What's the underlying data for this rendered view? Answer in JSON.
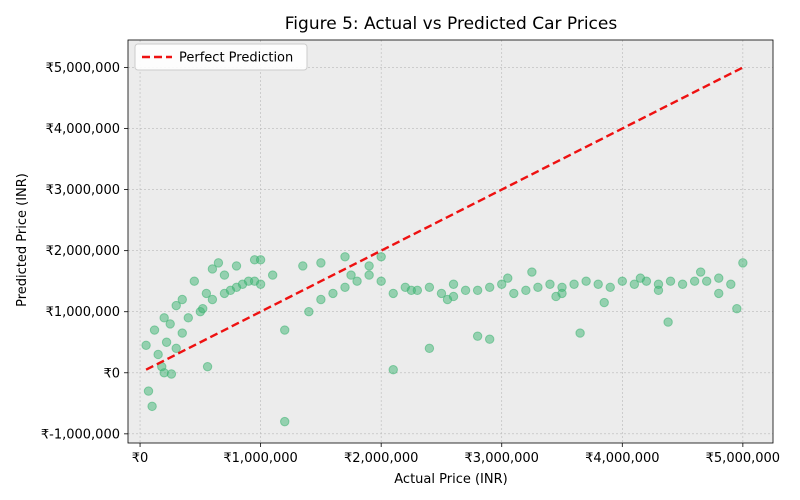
{
  "chart_data": {
    "type": "scatter",
    "title": "Figure 5: Actual vs Predicted Car Prices",
    "xlabel": "Actual Price (INR)",
    "ylabel": "Predicted Price (INR)",
    "xlim": [
      -100000,
      5250000
    ],
    "ylim": [
      -1150000,
      5450000
    ],
    "xticks": [
      0,
      1000000,
      2000000,
      3000000,
      4000000,
      5000000
    ],
    "xtick_labels": [
      "₹0",
      "₹1,000,000",
      "₹2,000,000",
      "₹3,000,000",
      "₹4,000,000",
      "₹5,000,000"
    ],
    "yticks": [
      -1000000,
      0,
      1000000,
      2000000,
      3000000,
      4000000,
      5000000
    ],
    "ytick_labels": [
      "₹-1,000,000",
      "₹0",
      "₹1,000,000",
      "₹2,000,000",
      "₹3,000,000",
      "₹4,000,000",
      "₹5,000,000"
    ],
    "grid": true,
    "legend_position": "top-left",
    "colors": {
      "points": "#3cb371",
      "reference": "#ee1111",
      "plot_bg": "#ececec",
      "grid": "#b8b8b8"
    },
    "series": [
      {
        "kind": "points",
        "x": [
          50000,
          70000,
          100000,
          120000,
          150000,
          180000,
          200000,
          220000,
          260000,
          300000,
          350000,
          400000,
          500000,
          520000,
          560000,
          600000,
          700000,
          750000,
          800000,
          850000,
          900000,
          950000,
          1000000,
          1100000,
          1200000,
          1400000,
          1500000,
          1600000,
          1700000,
          1800000,
          1900000,
          2000000,
          2100000,
          2200000,
          2300000,
          2400000,
          2500000,
          2600000,
          2700000,
          2800000,
          2900000,
          3000000,
          3100000,
          3200000,
          3300000,
          3400000,
          3500000,
          3600000,
          3700000,
          3800000,
          3900000,
          4000000,
          4100000,
          4200000,
          4300000,
          4400000,
          4500000,
          4600000,
          4700000,
          4800000,
          4900000,
          5000000,
          1200000,
          1500000,
          2100000,
          2400000,
          3650000,
          4380000,
          2900000,
          2800000,
          1700000,
          3250000,
          200000,
          300000,
          450000,
          600000,
          650000,
          950000,
          1350000,
          1750000,
          2250000,
          2550000,
          3050000,
          3450000,
          3850000,
          4150000,
          4650000,
          4950000,
          1900000,
          2600000,
          3500000,
          4300000,
          4800000,
          2000000,
          1000000,
          800000,
          700000,
          250000,
          350000,
          550000
        ],
        "y": [
          450000,
          -300000,
          -550000,
          700000,
          300000,
          100000,
          0,
          500000,
          -20000,
          400000,
          650000,
          900000,
          1000000,
          1050000,
          100000,
          1200000,
          1300000,
          1350000,
          1400000,
          1450000,
          1500000,
          1500000,
          1450000,
          1600000,
          -800000,
          1000000,
          1200000,
          1300000,
          1400000,
          1500000,
          1600000,
          1500000,
          1300000,
          1400000,
          1350000,
          1400000,
          1300000,
          1250000,
          1350000,
          1350000,
          1400000,
          1450000,
          1300000,
          1350000,
          1400000,
          1450000,
          1400000,
          1450000,
          1500000,
          1450000,
          1400000,
          1500000,
          1450000,
          1500000,
          1450000,
          1500000,
          1450000,
          1500000,
          1500000,
          1550000,
          1450000,
          1800000,
          700000,
          1800000,
          50000,
          400000,
          650000,
          830000,
          550000,
          600000,
          1900000,
          1650000,
          900000,
          1100000,
          1500000,
          1700000,
          1800000,
          1850000,
          1750000,
          1600000,
          1350000,
          1200000,
          1550000,
          1250000,
          1150000,
          1550000,
          1650000,
          1050000,
          1750000,
          1450000,
          1300000,
          1350000,
          1300000,
          1900000,
          1850000,
          1750000,
          1600000,
          800000,
          1200000,
          1300000
        ]
      },
      {
        "kind": "line",
        "name": "Perfect Prediction",
        "x": [
          50000,
          5000000
        ],
        "y": [
          50000,
          5000000
        ]
      }
    ]
  }
}
